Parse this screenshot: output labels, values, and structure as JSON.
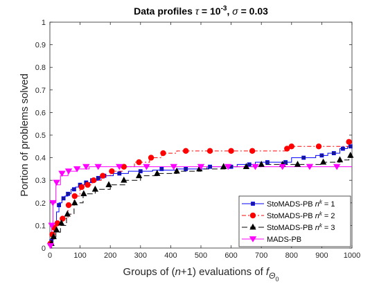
{
  "chart_data": {
    "type": "line",
    "title_parts": {
      "prefix": "Data profiles ",
      "tau": "τ",
      "tau_eq": " = 10",
      "tau_exp": "-3",
      "comma": ", ",
      "sigma": "σ",
      "sigma_eq": " = 0.03"
    },
    "xlabel_parts": {
      "a": "Groups of (",
      "n": "n",
      "b": "+1) evaluations of ",
      "f": "f",
      "sub": "Θ",
      "subsub": "0"
    },
    "ylabel": "Portion of problems solved",
    "xlim": [
      0,
      1000
    ],
    "ylim": [
      0,
      1
    ],
    "x_ticks": [
      "0",
      "100",
      "200",
      "300",
      "400",
      "500",
      "600",
      "700",
      "800",
      "900",
      "1000"
    ],
    "y_ticks": [
      "0",
      "0.1",
      "0.2",
      "0.3",
      "0.4",
      "0.5",
      "0.6",
      "0.7",
      "0.8",
      "0.9",
      "1"
    ],
    "grid": false,
    "legend_position": "bottom-right",
    "series": [
      {
        "name_base": "StoMADS-PB ",
        "name_sup": "k",
        "name_tail": " = 1",
        "color": "#0000ff",
        "dash": "",
        "marker": "square",
        "marker_fill": "#1a1a8c",
        "points": [
          [
            0,
            0
          ],
          [
            3,
            0.01
          ],
          [
            6,
            0.04
          ],
          [
            10,
            0.06
          ],
          [
            15,
            0.1
          ],
          [
            22,
            0.16
          ],
          [
            30,
            0.2
          ],
          [
            40,
            0.22
          ],
          [
            50,
            0.23
          ],
          [
            60,
            0.24
          ],
          [
            70,
            0.26
          ],
          [
            85,
            0.27
          ],
          [
            100,
            0.28
          ],
          [
            120,
            0.29
          ],
          [
            140,
            0.3
          ],
          [
            160,
            0.31
          ],
          [
            180,
            0.32
          ],
          [
            210,
            0.33
          ],
          [
            260,
            0.34
          ],
          [
            340,
            0.345
          ],
          [
            420,
            0.35
          ],
          [
            520,
            0.36
          ],
          [
            620,
            0.37
          ],
          [
            680,
            0.38
          ],
          [
            750,
            0.38
          ],
          [
            800,
            0.4
          ],
          [
            880,
            0.41
          ],
          [
            920,
            0.42
          ],
          [
            960,
            0.44
          ],
          [
            985,
            0.45
          ],
          [
            1000,
            0.45
          ]
        ],
        "markers": [
          [
            5,
            0.03
          ],
          [
            15,
            0.09
          ],
          [
            30,
            0.19
          ],
          [
            45,
            0.22
          ],
          [
            60,
            0.24
          ],
          [
            80,
            0.26
          ],
          [
            100,
            0.28
          ],
          [
            120,
            0.29
          ],
          [
            140,
            0.3
          ],
          [
            160,
            0.31
          ],
          [
            180,
            0.32
          ],
          [
            230,
            0.33
          ],
          [
            300,
            0.34
          ],
          [
            370,
            0.35
          ],
          [
            450,
            0.35
          ],
          [
            530,
            0.36
          ],
          [
            600,
            0.36
          ],
          [
            660,
            0.37
          ],
          [
            720,
            0.38
          ],
          [
            780,
            0.38
          ],
          [
            840,
            0.4
          ],
          [
            900,
            0.41
          ],
          [
            940,
            0.42
          ],
          [
            970,
            0.44
          ],
          [
            995,
            0.45
          ]
        ]
      },
      {
        "name_base": "StoMADS-PB ",
        "name_sup": "k",
        "name_tail": " = 2",
        "color": "#ff0000",
        "dash": "6,3,2,3",
        "marker": "circle",
        "marker_fill": "#ff0000",
        "points": [
          [
            0,
            0
          ],
          [
            4,
            0.02
          ],
          [
            8,
            0.06
          ],
          [
            14,
            0.09
          ],
          [
            25,
            0.11
          ],
          [
            40,
            0.13
          ],
          [
            60,
            0.19
          ],
          [
            80,
            0.23
          ],
          [
            100,
            0.27
          ],
          [
            120,
            0.28
          ],
          [
            140,
            0.3
          ],
          [
            170,
            0.32
          ],
          [
            200,
            0.34
          ],
          [
            240,
            0.36
          ],
          [
            280,
            0.38
          ],
          [
            330,
            0.4
          ],
          [
            370,
            0.42
          ],
          [
            420,
            0.43
          ],
          [
            500,
            0.43
          ],
          [
            600,
            0.43
          ],
          [
            700,
            0.43
          ],
          [
            780,
            0.44
          ],
          [
            800,
            0.45
          ],
          [
            900,
            0.45
          ],
          [
            960,
            0.45
          ],
          [
            990,
            0.47
          ],
          [
            1000,
            0.47
          ]
        ],
        "markers": [
          [
            2,
            0.02
          ],
          [
            8,
            0.06
          ],
          [
            14,
            0.09
          ],
          [
            25,
            0.11
          ],
          [
            42,
            0.13
          ],
          [
            62,
            0.19
          ],
          [
            82,
            0.23
          ],
          [
            105,
            0.27
          ],
          [
            125,
            0.28
          ],
          [
            145,
            0.3
          ],
          [
            175,
            0.32
          ],
          [
            205,
            0.34
          ],
          [
            245,
            0.36
          ],
          [
            295,
            0.38
          ],
          [
            335,
            0.4
          ],
          [
            375,
            0.42
          ],
          [
            450,
            0.43
          ],
          [
            530,
            0.43
          ],
          [
            600,
            0.43
          ],
          [
            670,
            0.43
          ],
          [
            785,
            0.44
          ],
          [
            800,
            0.45
          ],
          [
            890,
            0.45
          ],
          [
            990,
            0.47
          ]
        ]
      },
      {
        "name_base": "StoMADS-PB ",
        "name_sup": "k",
        "name_tail": " = 3",
        "color": "#000000",
        "dash": "8,4",
        "marker": "triangle-up",
        "marker_fill": "#000000",
        "points": [
          [
            0,
            0
          ],
          [
            5,
            0.02
          ],
          [
            10,
            0.04
          ],
          [
            20,
            0.07
          ],
          [
            35,
            0.1
          ],
          [
            55,
            0.15
          ],
          [
            80,
            0.2
          ],
          [
            110,
            0.24
          ],
          [
            150,
            0.26
          ],
          [
            200,
            0.28
          ],
          [
            250,
            0.3
          ],
          [
            300,
            0.32
          ],
          [
            360,
            0.33
          ],
          [
            420,
            0.34
          ],
          [
            500,
            0.35
          ],
          [
            580,
            0.36
          ],
          [
            650,
            0.36
          ],
          [
            700,
            0.37
          ],
          [
            760,
            0.37
          ],
          [
            820,
            0.37
          ],
          [
            900,
            0.38
          ],
          [
            960,
            0.39
          ],
          [
            990,
            0.41
          ],
          [
            1000,
            0.41
          ]
        ],
        "markers": [
          [
            5,
            0.02
          ],
          [
            12,
            0.05
          ],
          [
            22,
            0.08
          ],
          [
            38,
            0.11
          ],
          [
            58,
            0.15
          ],
          [
            82,
            0.2
          ],
          [
            112,
            0.24
          ],
          [
            150,
            0.26
          ],
          [
            195,
            0.28
          ],
          [
            245,
            0.3
          ],
          [
            295,
            0.32
          ],
          [
            355,
            0.33
          ],
          [
            420,
            0.34
          ],
          [
            495,
            0.35
          ],
          [
            575,
            0.36
          ],
          [
            650,
            0.36
          ],
          [
            700,
            0.37
          ],
          [
            770,
            0.37
          ],
          [
            820,
            0.37
          ],
          [
            905,
            0.38
          ],
          [
            960,
            0.39
          ],
          [
            995,
            0.41
          ]
        ]
      },
      {
        "name_base": "MADS-PB",
        "name_sup": "",
        "name_tail": "",
        "color": "#ff00ff",
        "dash": "",
        "marker": "triangle-down",
        "marker_fill": "#ff00ff",
        "points": [
          [
            0,
            0
          ],
          [
            3,
            0.02
          ],
          [
            6,
            0.1
          ],
          [
            10,
            0.2
          ],
          [
            20,
            0.28
          ],
          [
            35,
            0.32
          ],
          [
            60,
            0.34
          ],
          [
            90,
            0.35
          ],
          [
            130,
            0.36
          ],
          [
            200,
            0.36
          ],
          [
            300,
            0.36
          ],
          [
            400,
            0.36
          ],
          [
            500,
            0.36
          ],
          [
            600,
            0.36
          ],
          [
            700,
            0.36
          ],
          [
            800,
            0.36
          ],
          [
            900,
            0.36
          ],
          [
            1000,
            0.36
          ]
        ],
        "markers": [
          [
            2,
            0.01
          ],
          [
            6,
            0.1
          ],
          [
            10,
            0.2
          ],
          [
            22,
            0.29
          ],
          [
            40,
            0.33
          ],
          [
            62,
            0.34
          ],
          [
            90,
            0.35
          ],
          [
            120,
            0.36
          ],
          [
            160,
            0.36
          ],
          [
            230,
            0.36
          ],
          [
            320,
            0.36
          ],
          [
            410,
            0.36
          ],
          [
            500,
            0.36
          ],
          [
            590,
            0.36
          ],
          [
            680,
            0.36
          ],
          [
            770,
            0.36
          ],
          [
            860,
            0.36
          ],
          [
            950,
            0.36
          ]
        ]
      }
    ]
  }
}
